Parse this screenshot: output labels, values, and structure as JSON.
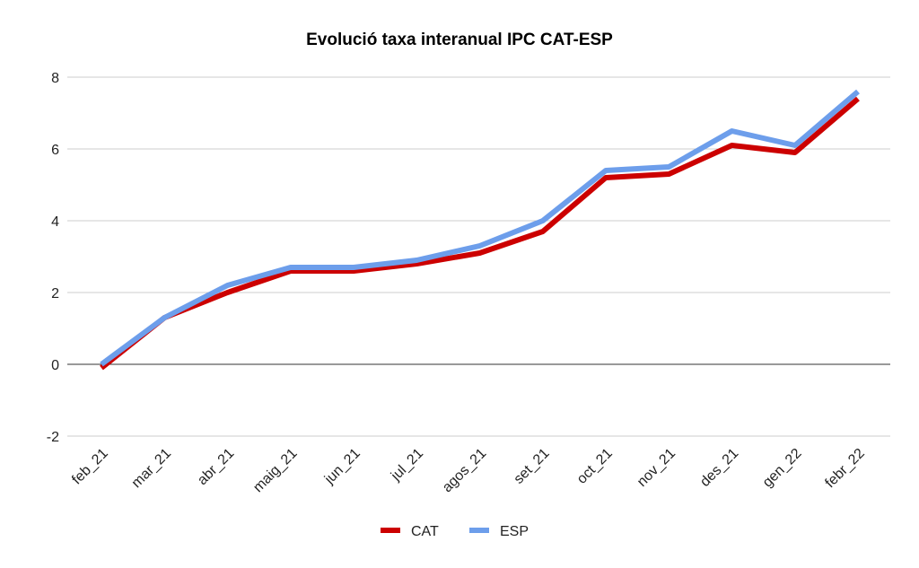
{
  "chart_data": {
    "type": "line",
    "title": "Evolució taxa interanual IPC CAT-ESP",
    "xlabel": "",
    "ylabel": "",
    "categories": [
      "feb_21",
      "mar_21",
      "abr_21",
      "maig_21",
      "jun_21",
      "jul_21",
      "agos_21",
      "set_21",
      "oct_21",
      "nov_21",
      "des_21",
      "gen_22",
      "febr_22"
    ],
    "series": [
      {
        "name": "CAT",
        "color": "#cc0000",
        "values": [
          -0.1,
          1.3,
          2.0,
          2.6,
          2.6,
          2.8,
          3.1,
          3.7,
          5.2,
          5.3,
          6.1,
          5.9,
          7.4
        ]
      },
      {
        "name": "ESP",
        "color": "#6d9eeb",
        "values": [
          0.0,
          1.3,
          2.2,
          2.7,
          2.7,
          2.9,
          3.3,
          4.0,
          5.4,
          5.5,
          6.5,
          6.1,
          7.6
        ]
      }
    ],
    "ylim": [
      -2,
      8
    ],
    "yticks": [
      -2,
      0,
      2,
      4,
      6,
      8
    ],
    "grid": true,
    "legend_position": "bottom"
  }
}
